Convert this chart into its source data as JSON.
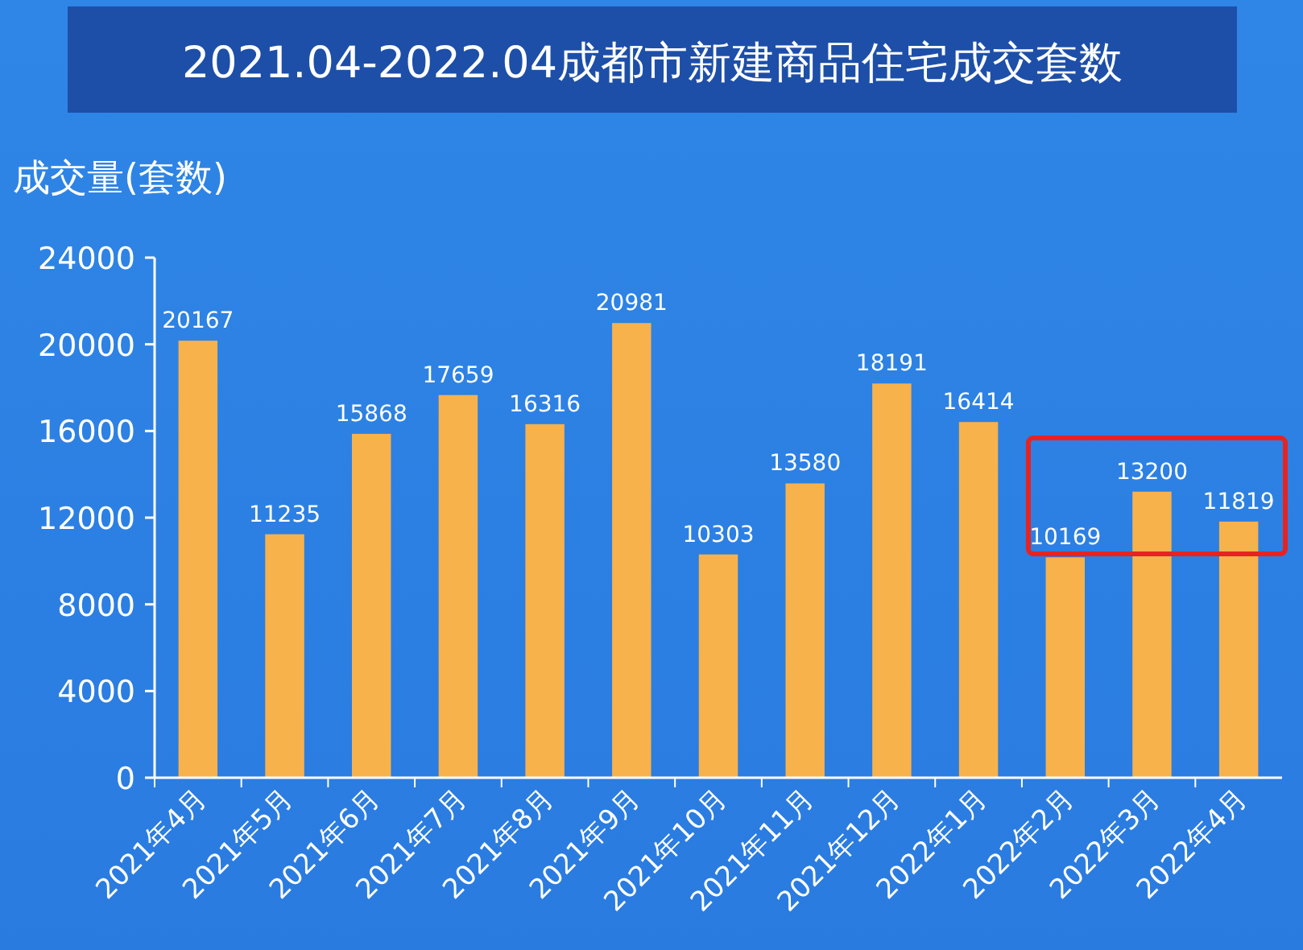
{
  "chart_data": {
    "type": "bar",
    "title": "2021.04-2022.04成都市新建商品住宅成交套数",
    "ylabel": "成交量(套数)",
    "categories": [
      "2021年4月",
      "2021年5月",
      "2021年6月",
      "2021年7月",
      "2021年8月",
      "2021年9月",
      "2021年10月",
      "2021年11月",
      "2021年12月",
      "2022年1月",
      "2022年2月",
      "2022年3月",
      "2022年4月"
    ],
    "values": [
      20167,
      11235,
      15868,
      17659,
      16316,
      20981,
      10303,
      13580,
      18191,
      16414,
      10169,
      13200,
      11819
    ],
    "color": "#f7b24c",
    "ylim": [
      0,
      24000
    ],
    "yticks": [
      0,
      4000,
      8000,
      12000,
      16000,
      20000,
      24000
    ],
    "data_labels": true,
    "grid": false
  }
}
